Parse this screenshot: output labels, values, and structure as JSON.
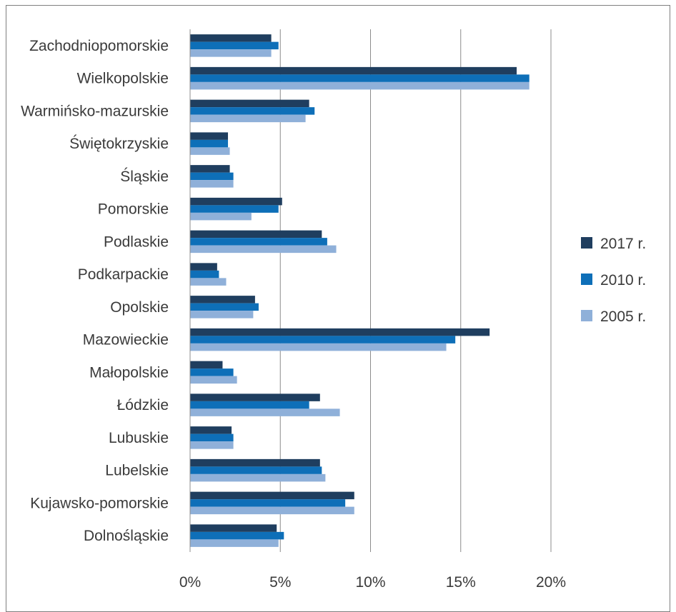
{
  "chart_data": {
    "type": "bar",
    "orientation": "horizontal",
    "categories": [
      "Zachodniopomorskie",
      "Wielkopolskie",
      "Warmińsko-mazurskie",
      "Świętokrzyskie",
      "Śląskie",
      "Pomorskie",
      "Podlaskie",
      "Podkarpackie",
      "Opolskie",
      "Mazowieckie",
      "Małopolskie",
      "Łódzkie",
      "Lubuskie",
      "Lubelskie",
      "Kujawsko-pomorskie",
      "Dolnośląskie"
    ],
    "series": [
      {
        "name": "2017 r.",
        "color": "#1f3e5f",
        "values": [
          4.5,
          18.1,
          6.6,
          2.1,
          2.2,
          5.1,
          7.3,
          1.5,
          3.6,
          16.6,
          1.8,
          7.2,
          2.3,
          7.2,
          9.1,
          4.8
        ]
      },
      {
        "name": "2010 r.",
        "color": "#0e6fb8",
        "values": [
          4.9,
          18.8,
          6.9,
          2.1,
          2.4,
          4.9,
          7.6,
          1.6,
          3.8,
          14.7,
          2.4,
          6.6,
          2.4,
          7.3,
          8.6,
          5.2
        ]
      },
      {
        "name": "2005 r.",
        "color": "#8fb0d9",
        "values": [
          4.5,
          18.8,
          6.4,
          2.2,
          2.4,
          3.4,
          8.1,
          2.0,
          3.5,
          14.2,
          2.6,
          8.3,
          2.4,
          7.5,
          9.1,
          4.9
        ]
      }
    ],
    "xlim": [
      0,
      20
    ],
    "x_ticks": [
      0,
      5,
      10,
      15,
      20
    ],
    "x_tick_labels": [
      "0%",
      "5%",
      "10%",
      "15%",
      "20%"
    ],
    "grid": true,
    "legend_position": "right",
    "title": "",
    "xlabel": "",
    "ylabel": ""
  }
}
